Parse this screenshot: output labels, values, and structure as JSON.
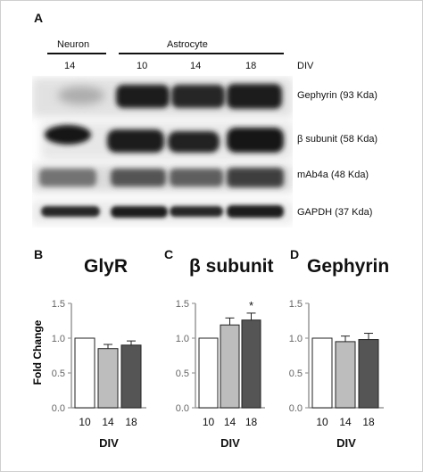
{
  "western_blot": {
    "panel_letter": "A",
    "groups": [
      {
        "name": "Neuron",
        "lanes": [
          "14"
        ]
      },
      {
        "name": "Astrocyte",
        "lanes": [
          "10",
          "14",
          "18"
        ]
      }
    ],
    "lane_axis_label": "DIV",
    "bands": [
      {
        "label": "Gephyrin (93 Kda)"
      },
      {
        "label": "β subunit (58 Kda)"
      },
      {
        "label": "mAb4a (48 Kda)"
      },
      {
        "label": "GAPDH (37 Kda)"
      }
    ]
  },
  "chart_data": [
    {
      "panel_letter": "B",
      "type": "bar",
      "title": "GlyR",
      "xlabel": "DIV",
      "ylabel": "Fold Change",
      "categories": [
        "10",
        "14",
        "18"
      ],
      "values": [
        1.0,
        0.85,
        0.9
      ],
      "errors": [
        0,
        0.06,
        0.06
      ],
      "bar_colors": [
        "#ffffff",
        "#bdbdbd",
        "#555555"
      ],
      "ylim": [
        0.0,
        1.5
      ],
      "yticks": [
        "0.0",
        "0.5",
        "1.0",
        "1.5"
      ],
      "annotation": ""
    },
    {
      "panel_letter": "C",
      "type": "bar",
      "title": "β subunit",
      "xlabel": "DIV",
      "ylabel": "",
      "categories": [
        "10",
        "14",
        "18"
      ],
      "values": [
        1.0,
        1.19,
        1.26
      ],
      "errors": [
        0,
        0.1,
        0.1
      ],
      "bar_colors": [
        "#ffffff",
        "#bdbdbd",
        "#555555"
      ],
      "ylim": [
        0.0,
        1.5
      ],
      "yticks": [
        "0.0",
        "0.5",
        "1.0",
        "1.5"
      ],
      "annotation": "*"
    },
    {
      "panel_letter": "D",
      "type": "bar",
      "title": "Gephyrin",
      "xlabel": "DIV",
      "ylabel": "",
      "categories": [
        "10",
        "14",
        "18"
      ],
      "values": [
        1.0,
        0.95,
        0.98
      ],
      "errors": [
        0,
        0.08,
        0.09
      ],
      "bar_colors": [
        "#ffffff",
        "#bdbdbd",
        "#555555"
      ],
      "ylim": [
        0.0,
        1.5
      ],
      "yticks": [
        "0.0",
        "0.5",
        "1.0",
        "1.5"
      ],
      "annotation": ""
    }
  ]
}
